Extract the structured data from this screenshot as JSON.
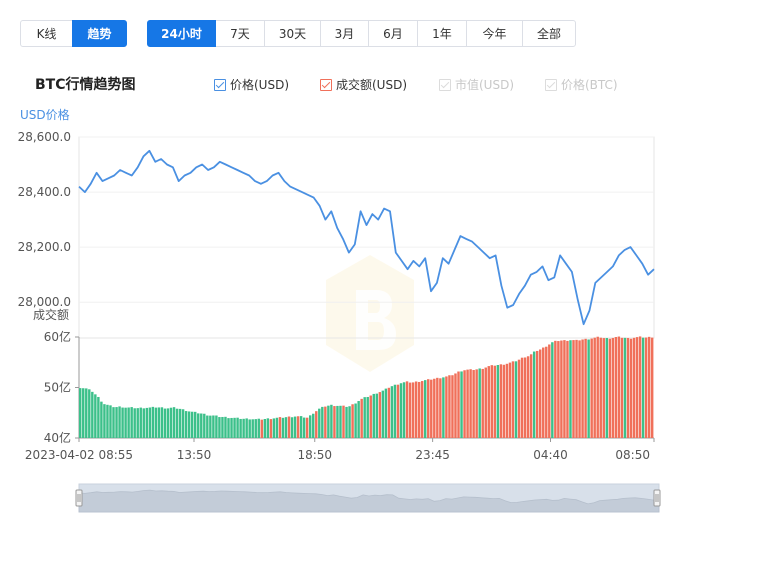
{
  "toolbar": {
    "view_tabs": [
      {
        "label": "K线",
        "active": false
      },
      {
        "label": "趋势",
        "active": true
      }
    ],
    "range_tabs": [
      {
        "label": "24小时",
        "active": true
      },
      {
        "label": "7天",
        "active": false
      },
      {
        "label": "30天",
        "active": false
      },
      {
        "label": "3月",
        "active": false
      },
      {
        "label": "6月",
        "active": false
      },
      {
        "label": "1年",
        "active": false
      },
      {
        "label": "今年",
        "active": false
      },
      {
        "label": "全部",
        "active": false
      }
    ]
  },
  "chart_title": "BTC行情趋势图",
  "legend": [
    {
      "label": "价格(USD)",
      "checked": true,
      "enabled": true,
      "color": "#4a90e2"
    },
    {
      "label": "成交额(USD)",
      "checked": true,
      "enabled": true,
      "color": "#f0705a"
    },
    {
      "label": "市值(USD)",
      "checked": true,
      "enabled": false,
      "color": "#dcdcdc"
    },
    {
      "label": "价格(BTC)",
      "checked": true,
      "enabled": false,
      "color": "#dcdcdc"
    }
  ],
  "colors": {
    "price_line": "#4a90e2",
    "volume_up": "#3cc08a",
    "volume_down": "#f0705a",
    "active_tab": "#1677e6",
    "navigator_fill": "#d8e0ea"
  },
  "chart_data": {
    "type": "line",
    "x_tick_labels": [
      "2023-04-02 08:55",
      "13:50",
      "18:50",
      "23:45",
      "04:40",
      "08:50"
    ],
    "price_axis": {
      "title": "USD价格",
      "ticks": [
        "28,600.0",
        "28,400.0",
        "28,200.0",
        "28,000.0"
      ],
      "ylim": [
        27870,
        28600
      ]
    },
    "volume_axis": {
      "title": "成交额",
      "ticks": [
        "60亿",
        "50亿",
        "40亿"
      ],
      "ylim": [
        40,
        60
      ]
    },
    "series": [
      {
        "name": "价格(USD)",
        "values": [
          28420,
          28400,
          28430,
          28470,
          28440,
          28450,
          28460,
          28480,
          28470,
          28460,
          28490,
          28530,
          28550,
          28510,
          28520,
          28500,
          28490,
          28440,
          28460,
          28470,
          28490,
          28500,
          28480,
          28490,
          28510,
          28500,
          28490,
          28480,
          28470,
          28460,
          28440,
          28430,
          28440,
          28460,
          28470,
          28440,
          28420,
          28410,
          28400,
          28390,
          28380,
          28350,
          28300,
          28330,
          28270,
          28230,
          28180,
          28210,
          28330,
          28280,
          28320,
          28300,
          28340,
          28330,
          28180,
          28150,
          28120,
          28150,
          28130,
          28160,
          28040,
          28070,
          28160,
          28140,
          28190,
          28240,
          28230,
          28220,
          28200,
          28180,
          28160,
          28170,
          28060,
          27980,
          27990,
          28030,
          28060,
          28100,
          28110,
          28130,
          28080,
          28090,
          28170,
          28140,
          28110,
          28010,
          27920,
          27970,
          28070,
          28090,
          28110,
          28130,
          28170,
          28190,
          28200,
          28170,
          28140,
          28100,
          28120
        ]
      },
      {
        "name": "成交额(USD)",
        "values": [
          50.0,
          49.8,
          49.3,
          48.2,
          46.8,
          46.4,
          46.1,
          46.2,
          46.0,
          46.0,
          45.9,
          46.0,
          46.0,
          46.1,
          46.0,
          45.9,
          46.0,
          45.8,
          45.5,
          45.2,
          45.0,
          44.8,
          44.5,
          44.4,
          44.2,
          44.1,
          44.0,
          43.9,
          43.8,
          43.8,
          43.7,
          43.7,
          43.8,
          43.9,
          44.0,
          44.1,
          44.2,
          44.3,
          44.2,
          44.0,
          45.0,
          45.8,
          46.3,
          46.5,
          46.4,
          46.3,
          46.2,
          46.8,
          47.6,
          48.1,
          48.5,
          49.0,
          49.4,
          50.1,
          50.5,
          50.9,
          51.1,
          51.0,
          51.2,
          51.4,
          51.6,
          51.8,
          52.0,
          52.2,
          52.6,
          53.2,
          53.5,
          53.5,
          53.6,
          53.8,
          54.2,
          54.4,
          54.5,
          54.7,
          55.0,
          55.4,
          56.0,
          56.3,
          57.2,
          57.6,
          58.3,
          59.0,
          59.3,
          59.3,
          59.4,
          59.3,
          59.5,
          59.6,
          59.8,
          60.0,
          59.7,
          59.8,
          60.0,
          59.9,
          59.7,
          59.9,
          60.0,
          59.9,
          60.0
        ],
        "colors_pattern": "green until 23:45 region, then mostly red"
      }
    ],
    "grid": true,
    "legend_position": "top"
  },
  "navigator": {
    "label": "navigator"
  }
}
